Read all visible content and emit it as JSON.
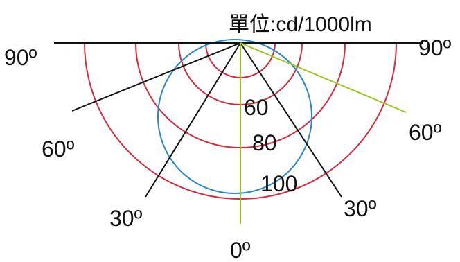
{
  "unit_label": "單位:cd/1000lm",
  "angle_labels": {
    "left_90": "90º",
    "right_90": "90º",
    "left_60": "60º",
    "right_60": "60º",
    "left_30": "30º",
    "right_30": "30º",
    "bottom_0": "0º"
  },
  "ring_labels": {
    "r60": "60",
    "r80": "80",
    "r100": "100"
  },
  "chart_data": {
    "type": "polar",
    "angular_ticks_deg": [
      0,
      30,
      60,
      90
    ],
    "radial_rings": [
      60,
      80,
      100
    ],
    "colors": {
      "rings": "#d42a3a",
      "blue_curve": "#2b86c8",
      "green_lines": "#9bc526",
      "black_lines": "#111111"
    }
  }
}
